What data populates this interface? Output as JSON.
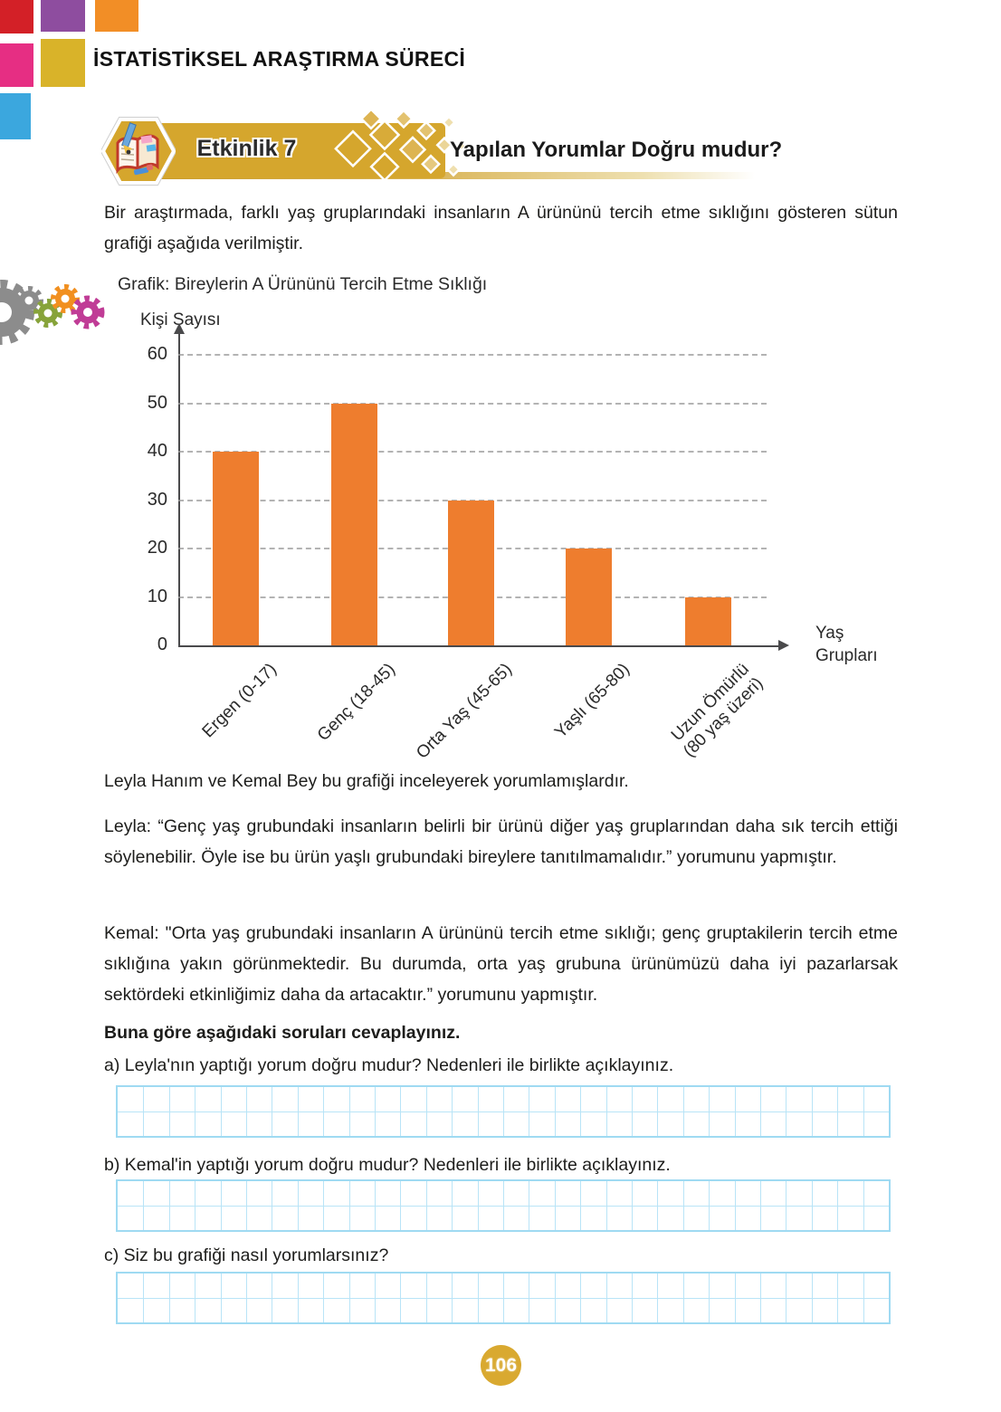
{
  "header": {
    "title": "İSTATİSTİKSEL ARAŞTIRMA SÜRECİ"
  },
  "activity": {
    "badge": "Etkinlik 7",
    "title": "Yapılan Yorumlar Doğru mudur?"
  },
  "intro": "Bir araştırmada, farklı yaş gruplarındaki insanların A ürününü tercih etme sıklığını gösteren sütun grafiği aşağıda verilmiştir.",
  "chart_data": {
    "type": "bar",
    "title": "Grafik: Bireylerin A Ürününü Tercih Etme Sıklığı",
    "ylabel": "Kişi Sayısı",
    "xlabel": "Yaş Grupları",
    "categories": [
      "Ergen (0-17)",
      "Genç (18-45)",
      "Orta Yaş (45-65)",
      "Yaşlı (65-80)",
      "Uzun Ömürlü\n(80 yaş üzeri)"
    ],
    "values": [
      40,
      50,
      30,
      20,
      10
    ],
    "yticks": [
      0,
      10,
      20,
      30,
      40,
      50,
      60
    ],
    "ylim": [
      0,
      60
    ],
    "bar_color": "#EE7D2E",
    "grid": true,
    "legend_position": "none"
  },
  "body": {
    "lead": "Leyla Hanım ve Kemal Bey bu grafiği inceleyerek yorumlamışlardır.",
    "leyla": "Leyla: “Genç yaş grubundaki insanların belirli bir ürünü diğer yaş gruplarından daha sık tercih ettiği söylenebilir. Öyle ise bu ürün yaşlı grubundaki bireylere tanıtılmamalıdır.” yorumunu yapmıştır.",
    "kemal": "Kemal: \"Orta yaş grubundaki insanların A ürününü tercih etme sıklığı; genç gruptakilerin tercih etme sıklığına yakın görünmektedir. Bu durumda, orta yaş grubuna ürünümüzü daha iyi pazarlarsak sektördeki etkinliğimiz daha da artacaktır.” yorumunu yapmıştır.",
    "prompt": "Buna göre aşağıdaki soruları cevaplayınız."
  },
  "questions": [
    {
      "label": "a) Leyla'nın yaptığı yorum doğru mudur? Nedenleri ile birlikte açıklayınız."
    },
    {
      "label": "b) Kemal'in yaptığı yorum doğru mudur? Nedenleri ile birlikte açıklayınız."
    },
    {
      "label": "c) Siz bu grafiği nasıl yorumlarsınız?"
    }
  ],
  "footer": {
    "page_number": "106"
  },
  "colors": {
    "bar_orange": "#EE7D2E",
    "banner_gold": "#D5A62D",
    "badge_gold": "#D9A930",
    "grid_blue": "#9FDAF2",
    "square_red": "#D32027",
    "square_purple": "#8E4D9F",
    "square_orange": "#F28E26",
    "square_pink": "#E62E83",
    "square_gold": "#D9B329",
    "square_blue": "#3BA7DE"
  }
}
